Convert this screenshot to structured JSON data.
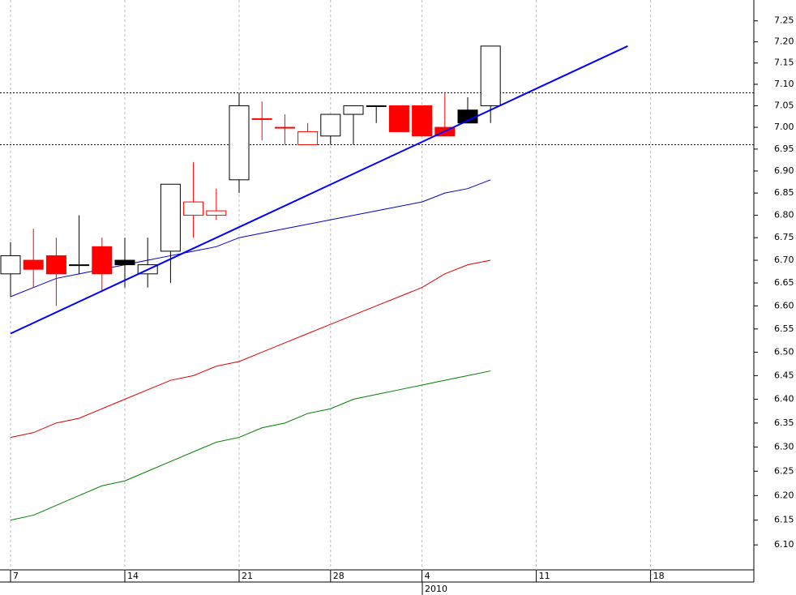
{
  "chart_data": {
    "type": "candlestick",
    "log_scale": true,
    "categories": [
      "7",
      null,
      null,
      null,
      null,
      "14",
      null,
      null,
      null,
      null,
      "21",
      null,
      null,
      null,
      "28",
      null,
      null,
      null,
      "4",
      null,
      null,
      null,
      null,
      "11",
      null,
      null,
      null,
      null,
      "18",
      null,
      null,
      null,
      null
    ],
    "open": [
      6.67,
      6.7,
      6.71,
      6.69,
      6.73,
      6.7,
      6.67,
      6.72,
      6.8,
      6.8,
      6.88,
      7.02,
      7.0,
      6.96,
      6.98,
      7.03,
      7.05,
      7.05,
      7.05,
      7.0,
      7.04,
      7.05,
      null,
      null,
      null,
      null,
      null,
      null,
      null,
      null,
      null,
      null,
      null
    ],
    "high": [
      6.74,
      6.77,
      6.75,
      6.8,
      6.75,
      6.75,
      6.75,
      6.87,
      6.92,
      6.86,
      7.08,
      7.06,
      7.03,
      7.01,
      7.03,
      7.05,
      7.05,
      7.05,
      7.05,
      7.08,
      7.07,
      7.19,
      null,
      null,
      null,
      null,
      null,
      null,
      null,
      null,
      null,
      null,
      null
    ],
    "low": [
      6.62,
      6.64,
      6.6,
      6.67,
      6.63,
      6.64,
      6.64,
      6.65,
      6.75,
      6.79,
      6.85,
      6.97,
      6.96,
      6.96,
      6.96,
      6.96,
      7.01,
      6.99,
      6.98,
      6.98,
      7.01,
      7.01,
      null,
      null,
      null,
      null,
      null,
      null,
      null,
      null,
      null,
      null,
      null
    ],
    "close": [
      6.71,
      6.68,
      6.67,
      6.69,
      6.67,
      6.69,
      6.69,
      6.87,
      6.83,
      6.81,
      7.05,
      7.02,
      7.0,
      6.99,
      7.03,
      7.05,
      7.05,
      6.99,
      6.98,
      6.98,
      7.01,
      7.19,
      null,
      null,
      null,
      null,
      null,
      null,
      null,
      null,
      null,
      null,
      null
    ],
    "fills": [
      "#ffffff",
      "#ff0000",
      "#ff0000",
      "#000000",
      "#ff0000",
      "#000000",
      "#ffffff",
      "#ffffff",
      "#ffffff",
      "#ffffff",
      "#ffffff",
      "#ffffff",
      "#ffffff",
      "#ffffff",
      "#ffffff",
      "#ffffff",
      "#000000",
      "#ff0000",
      "#ff0000",
      "#ff0000",
      "#000000",
      "#ffffff",
      null,
      null,
      null,
      null,
      null,
      null,
      null,
      null,
      null,
      null,
      null
    ],
    "strokes": [
      "#000000",
      "#ff0000",
      "#ff0000",
      "#000000",
      "#ff0000",
      "#000000",
      "#000000",
      "#000000",
      "#ff0000",
      "#ff0000",
      "#000000",
      "#ff0000",
      "#ff0000",
      "#ff0000",
      "#000000",
      "#000000",
      "#000000",
      "#ff0000",
      "#ff0000",
      "#ff0000",
      "#000000",
      "#000000",
      null,
      null,
      null,
      null,
      null,
      null,
      null,
      null,
      null,
      null,
      null
    ],
    "lines": [
      {
        "color": "#0000cc",
        "values": [
          6.62,
          6.64,
          6.66,
          6.67,
          6.68,
          6.69,
          6.7,
          6.71,
          6.72,
          6.73,
          6.75,
          6.76,
          6.77,
          6.78,
          6.79,
          6.8,
          6.81,
          6.82,
          6.83,
          6.85,
          6.86,
          6.88,
          null,
          null,
          null,
          null,
          null,
          null,
          null,
          null,
          null,
          null,
          null
        ]
      },
      {
        "color": "#dd0000",
        "values": [
          6.32,
          6.33,
          6.35,
          6.36,
          6.38,
          6.4,
          6.42,
          6.44,
          6.45,
          6.47,
          6.48,
          6.5,
          6.52,
          6.54,
          6.56,
          6.58,
          6.6,
          6.62,
          6.64,
          6.67,
          6.69,
          6.7,
          null,
          null,
          null,
          null,
          null,
          null,
          null,
          null,
          null,
          null,
          null
        ]
      },
      {
        "color": "#008000",
        "values": [
          6.15,
          6.16,
          6.18,
          6.2,
          6.22,
          6.23,
          6.25,
          6.27,
          6.29,
          6.31,
          6.32,
          6.34,
          6.35,
          6.37,
          6.38,
          6.4,
          6.41,
          6.42,
          6.43,
          6.44,
          6.45,
          6.46,
          null,
          null,
          null,
          null,
          null,
          null,
          null,
          null,
          null,
          null,
          null
        ]
      }
    ],
    "trendline": {
      "color": "#0000ff",
      "x": [
        0,
        27
      ],
      "values": [
        6.54,
        7.19
      ]
    },
    "hlines": [
      7.08,
      6.96
    ],
    "year_label": "2010",
    "ylim": [
      6.05,
      7.3
    ],
    "yticks": [
      {
        "value": 6.1,
        "label": "6.10"
      },
      6.15,
      {
        "value": 6.2,
        "label": "6.20"
      },
      6.25,
      {
        "value": 6.3,
        "label": "6.30"
      },
      6.35,
      {
        "value": 6.4,
        "label": "6.40"
      },
      6.45,
      {
        "value": 6.5,
        "label": "6.50"
      },
      6.55,
      {
        "value": 6.6,
        "label": "6.60"
      },
      6.65,
      {
        "value": 6.7,
        "label": "6.70"
      },
      6.75,
      {
        "value": 6.8,
        "label": "6.80"
      },
      6.85,
      {
        "value": 6.9,
        "label": "6.90"
      },
      6.95,
      {
        "value": 7.0,
        "label": "7.00"
      },
      7.05,
      {
        "value": 7.1,
        "label": "7.10"
      },
      7.15,
      {
        "value": 7.2,
        "label": "7.20"
      },
      7.25
    ]
  }
}
